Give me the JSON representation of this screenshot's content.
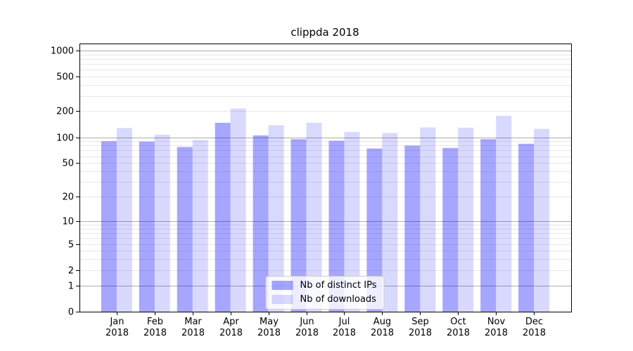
{
  "figure": {
    "background": "#ffffff"
  },
  "chart_data": {
    "type": "bar",
    "title": "clippda 2018",
    "categories": [
      "Jan",
      "Feb",
      "Mar",
      "Apr",
      "May",
      "Jun",
      "Jul",
      "Aug",
      "Sep",
      "Oct",
      "Nov",
      "Dec"
    ],
    "year": "2018",
    "series": [
      {
        "name": "Nb of distinct IPs",
        "color": "rgba(0,0,255,0.35)",
        "solid_color": "#a6a6ff",
        "values": [
          90,
          89,
          77,
          147,
          105,
          95,
          91,
          74,
          80,
          75,
          95,
          84
        ]
      },
      {
        "name": "Nb of downloads",
        "color": "rgba(0,0,255,0.15)",
        "solid_color": "#d9d9ff",
        "values": [
          128,
          107,
          93,
          215,
          138,
          147,
          115,
          112,
          130,
          129,
          177,
          125
        ]
      }
    ],
    "yscale": "log1p",
    "ylim": [
      0,
      1200
    ],
    "yticks": [
      0,
      1,
      2,
      5,
      10,
      20,
      50,
      100,
      200,
      500,
      1000
    ],
    "grid": {
      "major_ticks": [
        1,
        10,
        100,
        1000
      ],
      "major_color": "#adadad",
      "minor_color": "#e8e8e8"
    },
    "legend": {
      "position": "lower-center"
    },
    "axis_color": "#000000"
  }
}
